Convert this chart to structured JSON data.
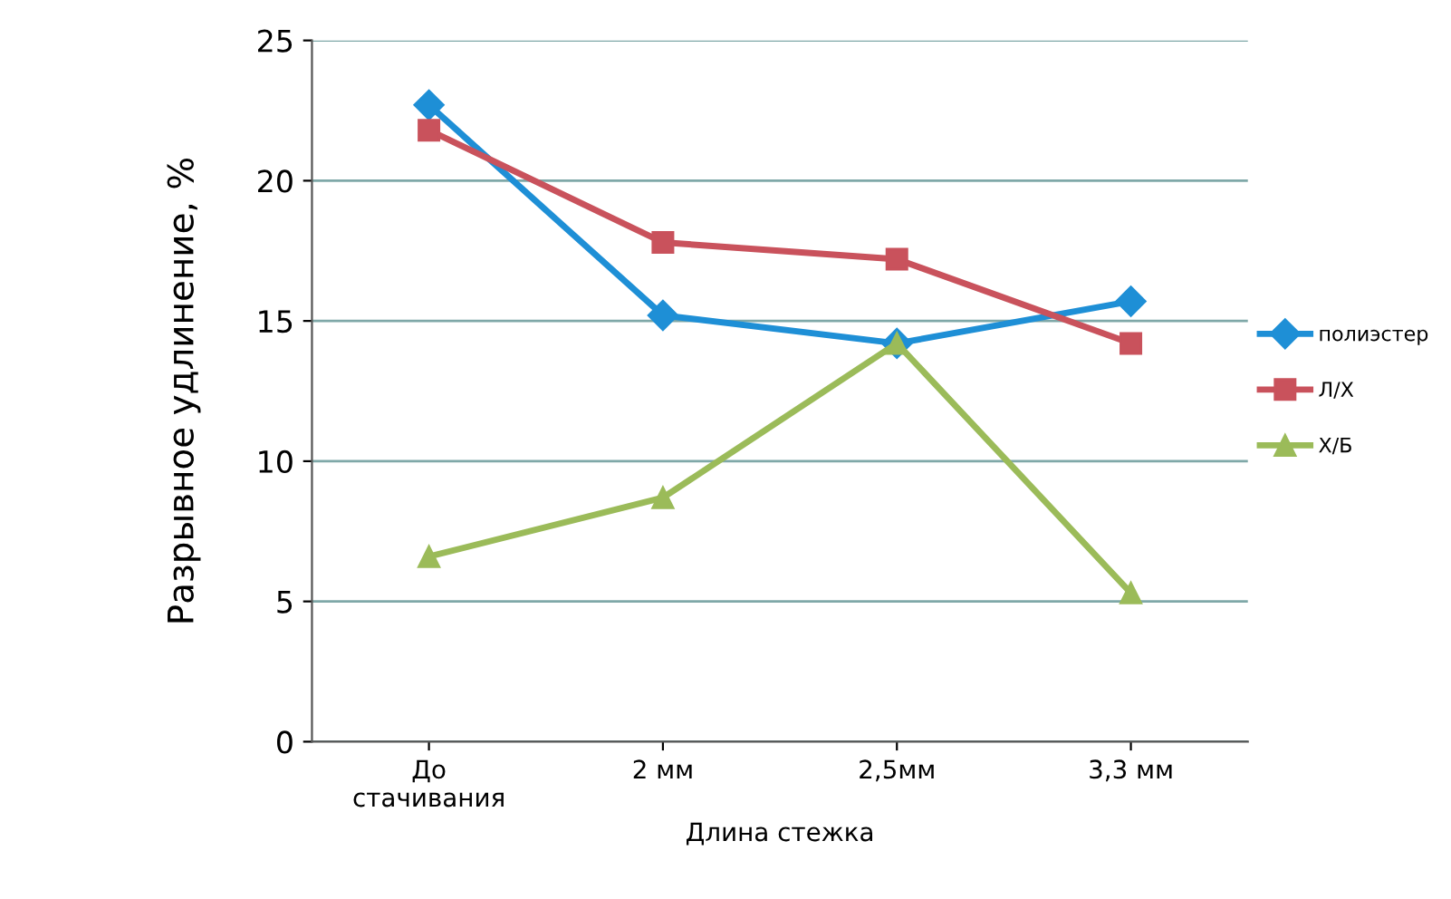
{
  "chart_data": {
    "type": "line",
    "xlabel": "Длина стежка",
    "ylabel": "Разрывное удлинение, %",
    "categories": [
      "До\nстачивания",
      "2 мм",
      "2,5мм",
      "3,3 мм"
    ],
    "series": [
      {
        "name": "полиэстер",
        "color": "#1e8fd6",
        "marker": "diamond",
        "values": [
          22.7,
          15.2,
          14.2,
          15.7
        ]
      },
      {
        "name": "Л/Х",
        "color": "#c9525c",
        "marker": "square",
        "values": [
          21.8,
          17.8,
          17.2,
          14.2
        ]
      },
      {
        "name": "Х/Б",
        "color": "#9bbb59",
        "marker": "triangle",
        "values": [
          6.6,
          8.7,
          14.2,
          5.3
        ]
      }
    ],
    "ylim": [
      0,
      25
    ],
    "yticks": [
      0,
      5,
      10,
      15,
      20,
      25
    ],
    "grid": "y",
    "legend": "right"
  }
}
